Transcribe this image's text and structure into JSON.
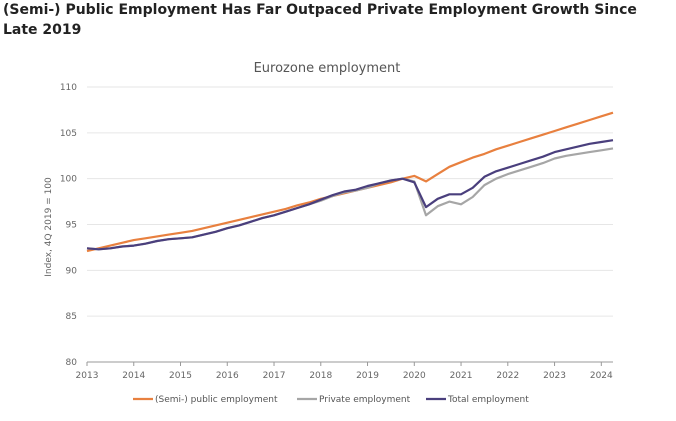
{
  "headline": "(Semi-) Public Employment Has Far Outpaced Private Employment Growth Since Late 2019",
  "chart_data": {
    "type": "line",
    "title": "Eurozone employment",
    "ylabel": "Index, 4Q 2019 = 100",
    "xlabel": "",
    "ylim": [
      80,
      110
    ],
    "xlim": [
      2013,
      2024.25
    ],
    "yticks": [
      80,
      85,
      90,
      95,
      100,
      105,
      110
    ],
    "xticks": [
      2013,
      2014,
      2015,
      2016,
      2017,
      2018,
      2019,
      2020,
      2021,
      2022,
      2023,
      2024
    ],
    "grid": "horizontal",
    "legend_position": "bottom",
    "series": [
      {
        "name": "(Semi-) public employment",
        "color": "#e8803f",
        "x": [
          2013.0,
          2013.25,
          2013.5,
          2013.75,
          2014.0,
          2014.25,
          2014.5,
          2014.75,
          2015.0,
          2015.25,
          2015.5,
          2015.75,
          2016.0,
          2016.25,
          2016.5,
          2016.75,
          2017.0,
          2017.25,
          2017.5,
          2017.75,
          2018.0,
          2018.25,
          2018.5,
          2018.75,
          2019.0,
          2019.25,
          2019.5,
          2019.75,
          2020.0,
          2020.25,
          2020.5,
          2020.75,
          2021.0,
          2021.25,
          2021.5,
          2021.75,
          2022.0,
          2022.25,
          2022.5,
          2022.75,
          2023.0,
          2023.25,
          2023.5,
          2023.75,
          2024.0,
          2024.25
        ],
        "values": [
          92.1,
          92.4,
          92.7,
          93.0,
          93.3,
          93.5,
          93.7,
          93.9,
          94.1,
          94.3,
          94.6,
          94.9,
          95.2,
          95.5,
          95.8,
          96.1,
          96.4,
          96.7,
          97.1,
          97.4,
          97.8,
          98.1,
          98.4,
          98.7,
          99.0,
          99.3,
          99.6,
          100.0,
          100.3,
          99.7,
          100.5,
          101.3,
          101.8,
          102.3,
          102.7,
          103.2,
          103.6,
          104.0,
          104.4,
          104.8,
          105.2,
          105.6,
          106.0,
          106.4,
          106.8,
          107.2
        ]
      },
      {
        "name": "Private employment",
        "color": "#a6a6a6",
        "x": [
          2013.0,
          2013.25,
          2013.5,
          2013.75,
          2014.0,
          2014.25,
          2014.5,
          2014.75,
          2015.0,
          2015.25,
          2015.5,
          2015.75,
          2016.0,
          2016.25,
          2016.5,
          2016.75,
          2017.0,
          2017.25,
          2017.5,
          2017.75,
          2018.0,
          2018.25,
          2018.5,
          2018.75,
          2019.0,
          2019.25,
          2019.5,
          2019.75,
          2020.0,
          2020.25,
          2020.5,
          2020.75,
          2021.0,
          2021.25,
          2021.5,
          2021.75,
          2022.0,
          2022.25,
          2022.5,
          2022.75,
          2023.0,
          2023.25,
          2023.5,
          2023.75,
          2024.0,
          2024.25
        ],
        "values": [
          92.4,
          92.3,
          92.4,
          92.6,
          92.7,
          92.9,
          93.2,
          93.4,
          93.5,
          93.6,
          93.9,
          94.2,
          94.6,
          94.9,
          95.3,
          95.7,
          96.0,
          96.4,
          96.8,
          97.2,
          97.6,
          98.1,
          98.5,
          98.7,
          99.0,
          99.5,
          99.8,
          100.0,
          99.7,
          96.0,
          97.0,
          97.5,
          97.2,
          98.0,
          99.3,
          100.0,
          100.5,
          100.9,
          101.3,
          101.7,
          102.2,
          102.5,
          102.7,
          102.9,
          103.1,
          103.3
        ]
      },
      {
        "name": "Total employment",
        "color": "#4a3f7d",
        "x": [
          2013.0,
          2013.25,
          2013.5,
          2013.75,
          2014.0,
          2014.25,
          2014.5,
          2014.75,
          2015.0,
          2015.25,
          2015.5,
          2015.75,
          2016.0,
          2016.25,
          2016.5,
          2016.75,
          2017.0,
          2017.25,
          2017.5,
          2017.75,
          2018.0,
          2018.25,
          2018.5,
          2018.75,
          2019.0,
          2019.25,
          2019.5,
          2019.75,
          2020.0,
          2020.25,
          2020.5,
          2020.75,
          2021.0,
          2021.25,
          2021.5,
          2021.75,
          2022.0,
          2022.25,
          2022.5,
          2022.75,
          2023.0,
          2023.25,
          2023.5,
          2023.75,
          2024.0,
          2024.25
        ],
        "values": [
          92.4,
          92.3,
          92.4,
          92.6,
          92.7,
          92.9,
          93.2,
          93.4,
          93.5,
          93.6,
          93.9,
          94.2,
          94.6,
          94.9,
          95.3,
          95.7,
          96.0,
          96.4,
          96.8,
          97.2,
          97.7,
          98.2,
          98.6,
          98.8,
          99.2,
          99.5,
          99.8,
          100.0,
          99.6,
          96.9,
          97.8,
          98.3,
          98.3,
          99.0,
          100.2,
          100.8,
          101.2,
          101.6,
          102.0,
          102.4,
          102.9,
          103.2,
          103.5,
          103.8,
          104.0,
          104.2
        ]
      }
    ]
  }
}
